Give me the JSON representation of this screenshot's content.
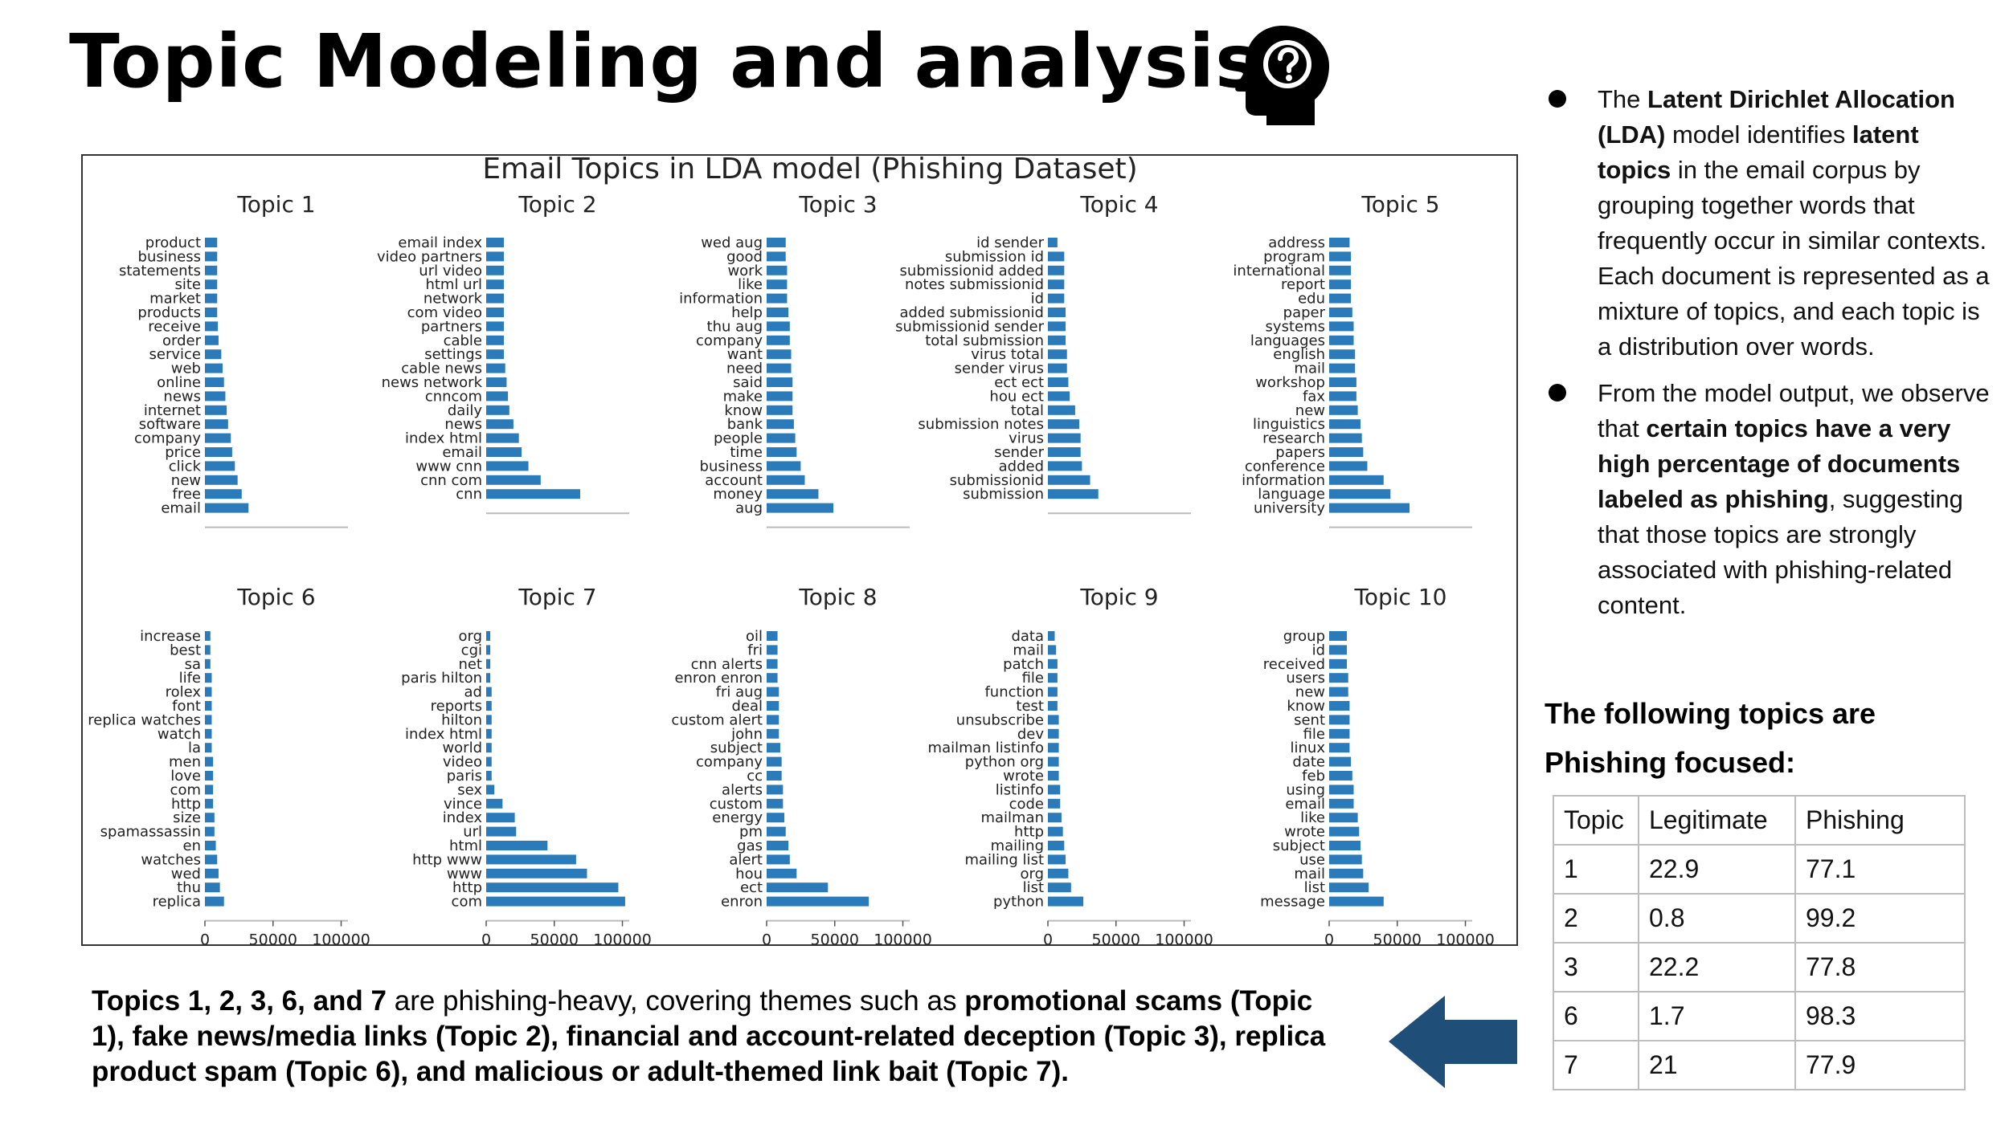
{
  "slide": {
    "title": "Topic Modeling and analysis",
    "icon": "head-question-icon",
    "bullets": [
      {
        "parts": [
          {
            "text": "The ",
            "bold": false
          },
          {
            "text": "Latent Dirichlet Allocation (LDA)",
            "bold": true
          },
          {
            "text": " model identifies ",
            "bold": false
          },
          {
            "text": "latent topics",
            "bold": true
          },
          {
            "text": " in the email corpus by grouping together words that frequently occur in similar contexts. Each document is represented as a mixture of topics, and each topic is a distribution over words.",
            "bold": false
          }
        ]
      },
      {
        "parts": [
          {
            "text": "From the model output, we observe that ",
            "bold": false
          },
          {
            "text": "certain topics have a very high percentage of documents labeled as phishing",
            "bold": true
          },
          {
            "text": ", suggesting that those topics are strongly associated with phishing-related content.",
            "bold": false
          }
        ]
      }
    ],
    "focus_heading": "The following topics are Phishing focused:",
    "table": {
      "headers": [
        "Topic",
        "Legitimate",
        "Phishing"
      ],
      "rows": [
        [
          "1",
          "22.9",
          "77.1"
        ],
        [
          "2",
          "0.8",
          "99.2"
        ],
        [
          "3",
          "22.2",
          "77.8"
        ],
        [
          "6",
          "1.7",
          "98.3"
        ],
        [
          "7",
          "21",
          "77.9"
        ]
      ]
    },
    "summary": [
      {
        "text": "Topics 1, 2, 3, 6, and 7",
        "bold": true
      },
      {
        "text": " are phishing-heavy, covering themes such as ",
        "bold": false
      },
      {
        "text": "promotional scams (Topic 1), fake news/media links (Topic 2), financial and account-related deception (Topic 3), replica product spam (Topic 6), and malicious or adult-themed link bait (Topic 7).",
        "bold": true
      }
    ],
    "arrow_color": "#1f4e79",
    "arrow_icon": "arrow-left-icon"
  },
  "chart_data": {
    "type": "bar",
    "orientation": "horizontal",
    "title": "Email Topics in LDA model (Phishing Dataset)",
    "bar_color": "#2b7bba",
    "xlim": [
      0,
      105000
    ],
    "xticks": [
      0,
      50000,
      100000
    ],
    "xtick_labels": [
      "0",
      "50000",
      "100000"
    ],
    "grid": false,
    "subplots": [
      {
        "title": "Topic 1",
        "words": [
          "product",
          "business",
          "statements",
          "site",
          "market",
          "products",
          "receive",
          "order",
          "service",
          "web",
          "online",
          "news",
          "internet",
          "software",
          "company",
          "price",
          "click",
          "new",
          "free",
          "email"
        ],
        "values": [
          9000,
          9000,
          9000,
          9000,
          9000,
          9000,
          9500,
          10000,
          12000,
          13000,
          14000,
          15000,
          16000,
          17000,
          19000,
          20000,
          22000,
          24000,
          27000,
          32000
        ]
      },
      {
        "title": "Topic 2",
        "words": [
          "email index",
          "video partners",
          "url video",
          "html url",
          "network",
          "com video",
          "partners",
          "cable",
          "settings",
          "cable news",
          "news network",
          "cnncom",
          "daily",
          "news",
          "index html",
          "email",
          "www cnn",
          "cnn com",
          "cnn"
        ],
        "values": [
          13000,
          13000,
          13000,
          13000,
          13000,
          13000,
          13000,
          13000,
          13000,
          14000,
          15000,
          16000,
          17000,
          20000,
          24000,
          26000,
          31000,
          40000,
          69000
        ]
      },
      {
        "title": "Topic 3",
        "words": [
          "wed aug",
          "good",
          "work",
          "like",
          "information",
          "help",
          "thu aug",
          "company",
          "want",
          "need",
          "said",
          "make",
          "know",
          "bank",
          "people",
          "time",
          "business",
          "account",
          "money",
          "aug"
        ],
        "values": [
          14000,
          14000,
          15000,
          15000,
          15000,
          16000,
          17000,
          17000,
          18000,
          18000,
          19000,
          19000,
          19000,
          20000,
          21000,
          22000,
          25000,
          28000,
          38000,
          49000
        ]
      },
      {
        "title": "Topic 4",
        "words": [
          "id sender",
          "submission id",
          "submissionid added",
          "notes submissionid",
          "id",
          "added submissionid",
          "submissionid sender",
          "total submission",
          "virus total",
          "sender virus",
          "ect ect",
          "hou ect",
          "total",
          "submission notes",
          "virus",
          "sender",
          "added",
          "submissionid",
          "submission"
        ],
        "values": [
          7000,
          12000,
          12000,
          12000,
          12000,
          13000,
          13000,
          13000,
          14000,
          14000,
          15000,
          16000,
          20000,
          23000,
          24000,
          24000,
          25000,
          31000,
          37000
        ]
      },
      {
        "title": "Topic 5",
        "words": [
          "address",
          "program",
          "international",
          "report",
          "edu",
          "paper",
          "systems",
          "languages",
          "english",
          "mail",
          "workshop",
          "fax",
          "new",
          "linguistics",
          "research",
          "papers",
          "conference",
          "information",
          "language",
          "university"
        ],
        "values": [
          15000,
          16000,
          16000,
          16000,
          16000,
          17000,
          18000,
          18000,
          19000,
          19000,
          20000,
          20000,
          21000,
          23000,
          24000,
          25000,
          28000,
          40000,
          45000,
          59000
        ]
      },
      {
        "title": "Topic 6",
        "words": [
          "increase",
          "best",
          "sa",
          "life",
          "rolex",
          "font",
          "replica watches",
          "watch",
          "la",
          "men",
          "love",
          "com",
          "http",
          "size",
          "spamassassin",
          "en",
          "watches",
          "wed",
          "thu",
          "replica"
        ],
        "values": [
          4000,
          4000,
          4000,
          5000,
          5000,
          5000,
          5000,
          5000,
          5000,
          6000,
          6000,
          6000,
          6000,
          7000,
          7000,
          8000,
          9000,
          10000,
          11000,
          14000
        ]
      },
      {
        "title": "Topic 7",
        "words": [
          "org",
          "cgi",
          "net",
          "paris hilton",
          "ad",
          "reports",
          "hilton",
          "index html",
          "world",
          "video",
          "paris",
          "sex",
          "vince",
          "index",
          "url",
          "html",
          "http www",
          "www",
          "http",
          "com"
        ],
        "values": [
          3000,
          3000,
          3000,
          3000,
          4000,
          4000,
          4000,
          4000,
          4000,
          4000,
          4000,
          6000,
          12000,
          21000,
          22000,
          45000,
          66000,
          74000,
          97000,
          102000
        ]
      },
      {
        "title": "Topic 8",
        "words": [
          "oil",
          "fri",
          "cnn alerts",
          "enron enron",
          "fri aug",
          "deal",
          "custom alert",
          "john",
          "subject",
          "company",
          "cc",
          "alerts",
          "custom",
          "energy",
          "pm",
          "gas",
          "alert",
          "hou",
          "ect",
          "enron"
        ],
        "values": [
          8000,
          8000,
          8000,
          8000,
          9000,
          9000,
          9000,
          9000,
          10000,
          11000,
          11000,
          12000,
          12000,
          13000,
          14000,
          16000,
          17000,
          22000,
          45000,
          75000
        ]
      },
      {
        "title": "Topic 9",
        "words": [
          "data",
          "mail",
          "patch",
          "file",
          "function",
          "test",
          "unsubscribe",
          "dev",
          "mailman listinfo",
          "python org",
          "wrote",
          "listinfo",
          "code",
          "mailman",
          "http",
          "mailing",
          "mailing list",
          "org",
          "list",
          "python"
        ],
        "values": [
          5000,
          6000,
          7000,
          7000,
          7000,
          7000,
          8000,
          8000,
          8000,
          8000,
          8000,
          9000,
          9000,
          10000,
          11000,
          12000,
          13000,
          15000,
          17000,
          26000
        ]
      },
      {
        "title": "Topic 10",
        "words": [
          "group",
          "id",
          "received",
          "users",
          "new",
          "know",
          "sent",
          "file",
          "linux",
          "date",
          "feb",
          "using",
          "email",
          "like",
          "wrote",
          "subject",
          "use",
          "mail",
          "list",
          "message"
        ],
        "values": [
          13000,
          13000,
          13000,
          14000,
          14000,
          15000,
          15000,
          15000,
          15000,
          16000,
          17000,
          18000,
          18000,
          21000,
          22000,
          23000,
          24000,
          25000,
          29000,
          40000
        ]
      }
    ]
  }
}
